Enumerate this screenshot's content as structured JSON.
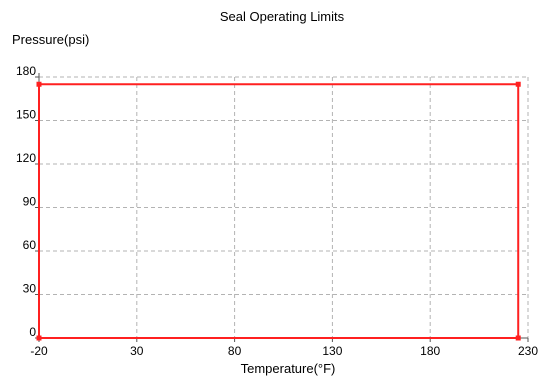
{
  "chart_data": {
    "type": "line",
    "title": "Seal Operating Limits",
    "xlabel": "Temperature(°F)",
    "ylabel": "Pressure(psi)",
    "xlim": [
      -20,
      230
    ],
    "ylim": [
      0,
      180
    ],
    "xticks": [
      -20,
      30,
      80,
      130,
      180,
      230
    ],
    "yticks": [
      0,
      30,
      60,
      90,
      120,
      150,
      180
    ],
    "grid": true,
    "colors": {
      "series": "#ff2020",
      "grid": "#b3b3b3",
      "axis": "#555555"
    },
    "series": [
      {
        "values": [
          {
            "x": -20,
            "y": 0
          },
          {
            "x": -20,
            "y": 175
          },
          {
            "x": 225,
            "y": 175
          },
          {
            "x": 225,
            "y": 0
          },
          {
            "x": -20,
            "y": 0
          }
        ]
      }
    ]
  }
}
